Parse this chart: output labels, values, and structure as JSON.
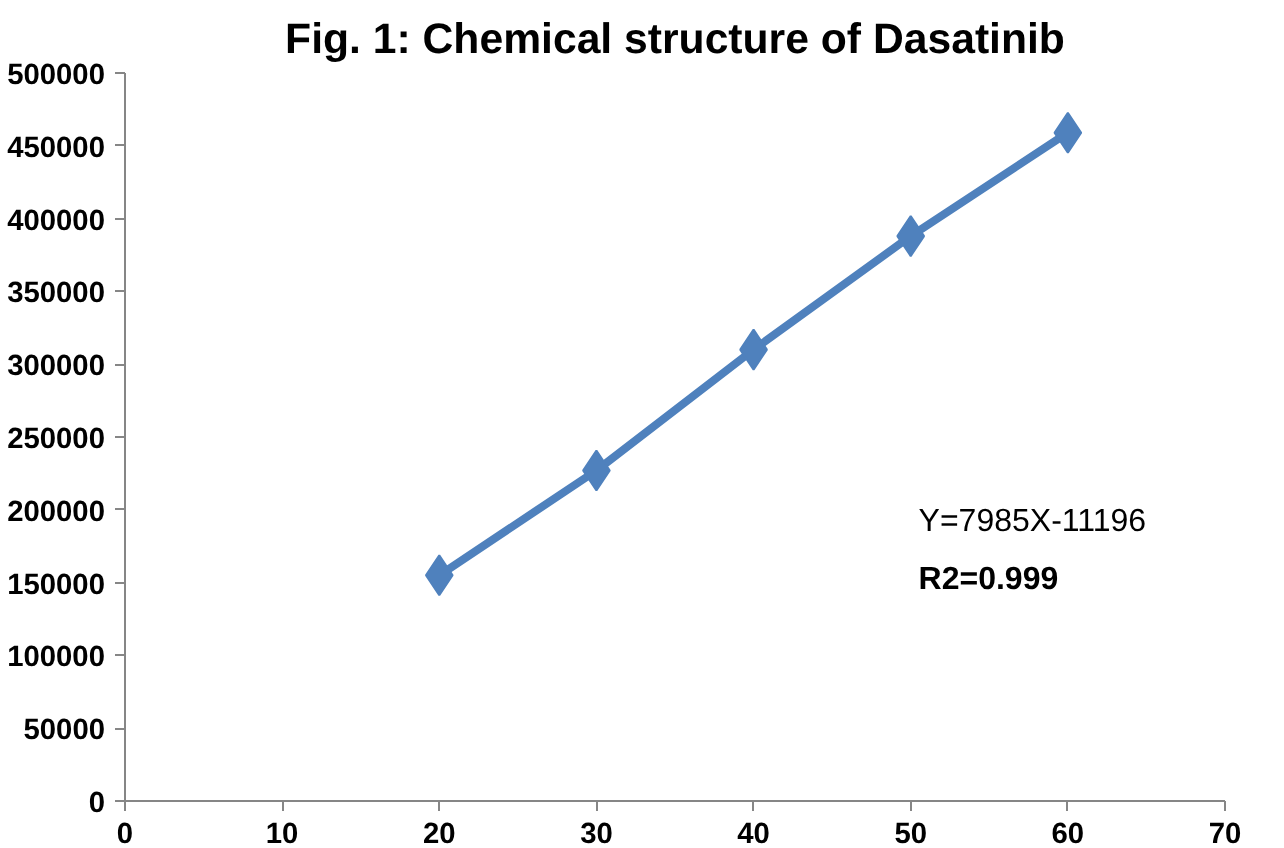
{
  "chart_data": {
    "type": "line",
    "title": "Fig. 1: Chemical structure of Dasatinib",
    "x": [
      20,
      30,
      40,
      50,
      60
    ],
    "series": [
      {
        "color": "#4f81bd",
        "values": [
          155000,
          227000,
          310000,
          388000,
          459000
        ]
      }
    ],
    "xlim": [
      0,
      70
    ],
    "xticks": [
      0,
      10,
      20,
      30,
      40,
      50,
      60,
      70
    ],
    "ylim": [
      0,
      500000
    ],
    "yticks": [
      0,
      50000,
      100000,
      150000,
      200000,
      250000,
      300000,
      350000,
      400000,
      450000,
      500000
    ],
    "grid": false,
    "marker": "diamond",
    "line_style": "solid",
    "annotations": [
      "Y=7985X-11196",
      "R2=0.999"
    ]
  }
}
